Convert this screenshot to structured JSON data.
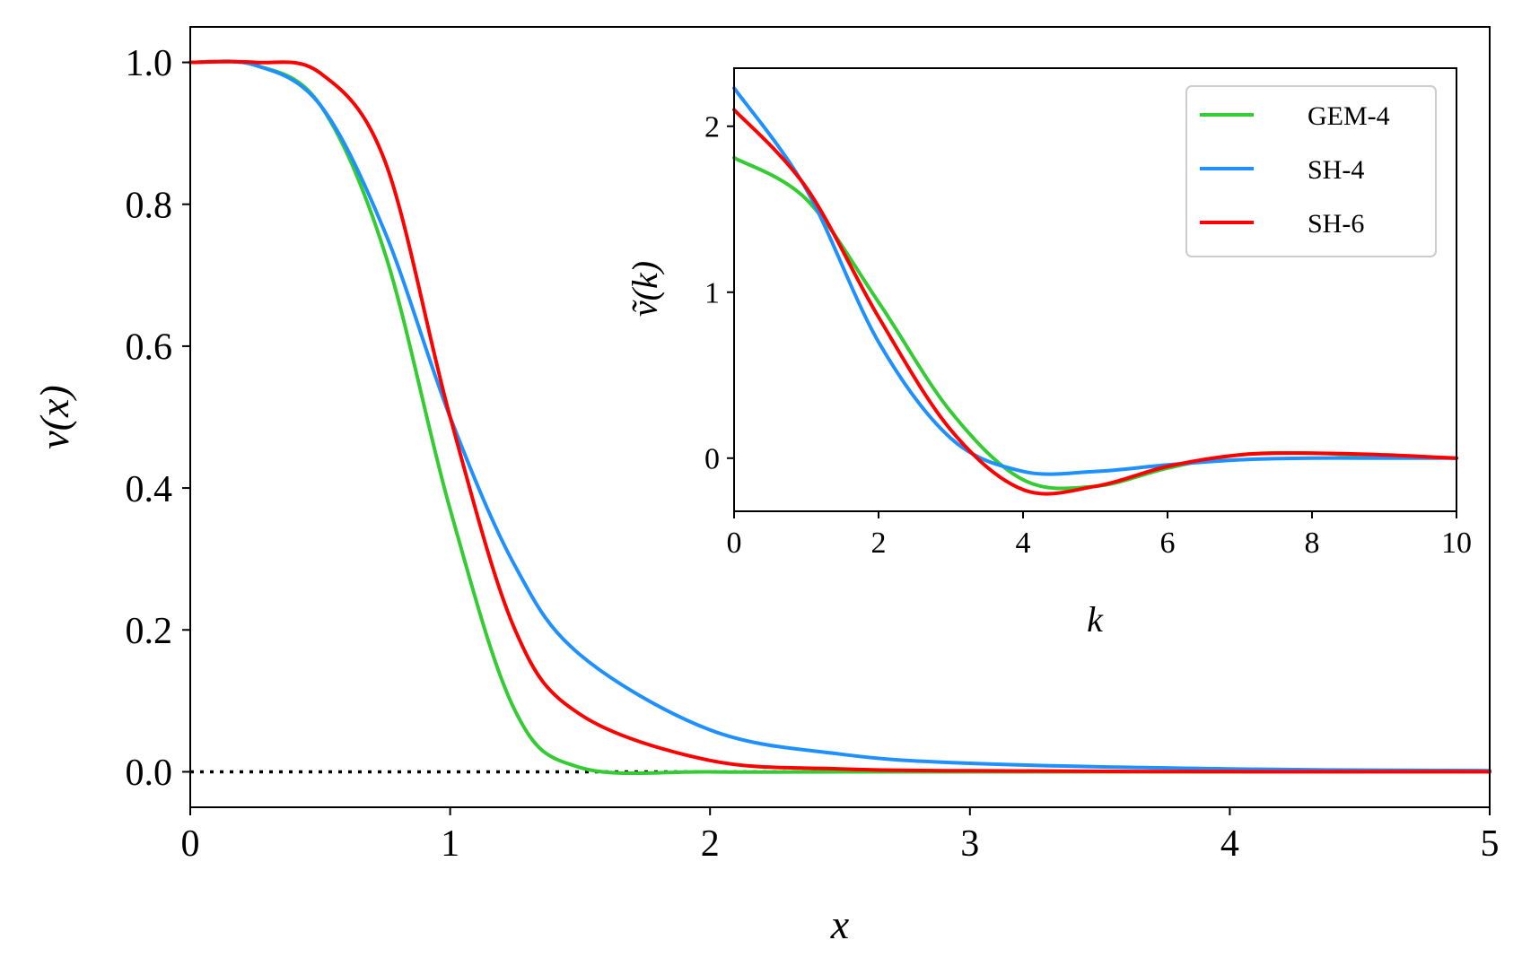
{
  "chart_data": [
    {
      "type": "line",
      "xlabel": "x",
      "ylabel": "v(x)",
      "xlim": [
        0,
        5
      ],
      "ylim": [
        -0.05,
        1.05
      ],
      "xticks": [
        "0",
        "1",
        "2",
        "3",
        "4",
        "5"
      ],
      "yticks": [
        "0.0",
        "0.2",
        "0.4",
        "0.6",
        "0.8",
        "1.0"
      ],
      "grid": false,
      "reference_line": {
        "y": 0,
        "style": "dotted",
        "color": "#000000"
      },
      "x": [
        0,
        0.25,
        0.5,
        0.75,
        1.0,
        1.25,
        1.5,
        2.0,
        2.5,
        3.0,
        4.0,
        5.0
      ],
      "series": [
        {
          "name": "GEM-4",
          "color": "#33cc33",
          "values": [
            1.0,
            0.996,
            0.94,
            0.73,
            0.37,
            0.086,
            0.006,
            0.0,
            0.0,
            0.0,
            0.0,
            0.0
          ]
        },
        {
          "name": "SH-4",
          "color": "#1e90ff",
          "values": [
            1.0,
            0.996,
            0.94,
            0.76,
            0.5,
            0.29,
            0.165,
            0.059,
            0.025,
            0.012,
            0.004,
            0.0016
          ]
        },
        {
          "name": "SH-6",
          "color": "#ff0000",
          "values": [
            1.0,
            1.0,
            0.985,
            0.86,
            0.5,
            0.2,
            0.081,
            0.016,
            0.0041,
            0.0014,
            0.0002,
            0.0001
          ]
        }
      ]
    },
    {
      "type": "line",
      "xlabel": "k",
      "ylabel": "ṽ(k)",
      "xlim": [
        0,
        10
      ],
      "ylim": [
        -0.32,
        2.35
      ],
      "xticks": [
        "0",
        "2",
        "4",
        "6",
        "8",
        "10"
      ],
      "yticks": [
        "0",
        "1",
        "2"
      ],
      "grid": false,
      "legend": {
        "placement": "top-right"
      },
      "x": [
        0,
        1,
        2,
        3,
        4,
        5,
        6,
        7,
        8,
        9,
        10
      ],
      "series": [
        {
          "name": "GEM-4",
          "color": "#33cc33",
          "values": [
            1.81,
            1.56,
            0.94,
            0.28,
            -0.13,
            -0.17,
            -0.06,
            0.02,
            0.03,
            0.01,
            0.0
          ]
        },
        {
          "name": "SH-4",
          "color": "#1e90ff",
          "values": [
            2.23,
            1.62,
            0.7,
            0.12,
            -0.08,
            -0.08,
            -0.04,
            -0.01,
            0.0,
            0.0,
            0.0
          ]
        },
        {
          "name": "SH-6",
          "color": "#ff0000",
          "values": [
            2.1,
            1.63,
            0.85,
            0.17,
            -0.19,
            -0.17,
            -0.05,
            0.02,
            0.03,
            0.02,
            0.0
          ]
        }
      ]
    }
  ]
}
